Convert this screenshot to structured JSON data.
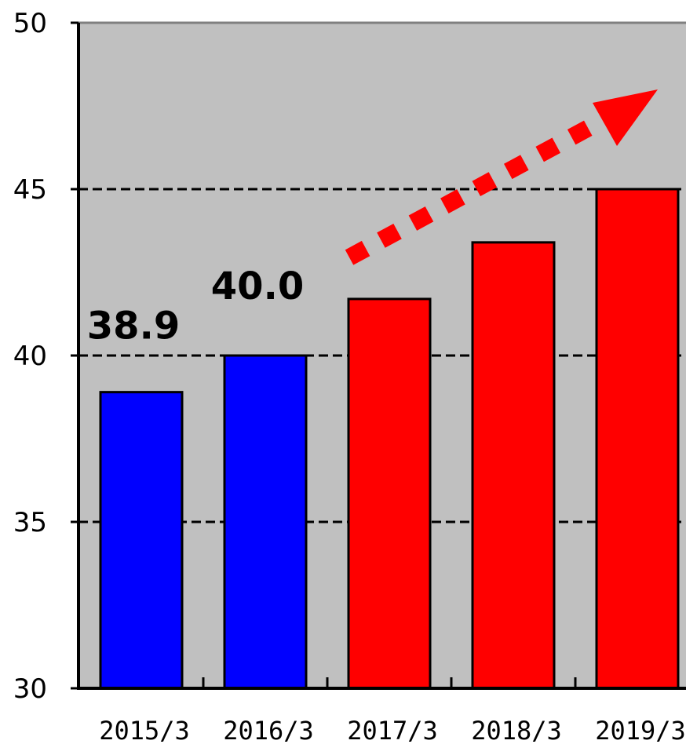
{
  "chart_data": {
    "type": "bar",
    "categories": [
      "2015/3",
      "2016/3",
      "2017/3",
      "2018/3",
      "2019/3"
    ],
    "values": [
      38.9,
      40.0,
      41.7,
      43.4,
      45.0
    ],
    "data_labels": [
      "38.9",
      "40.0",
      "",
      "",
      ""
    ],
    "bar_colors": [
      "#0000ff",
      "#0000ff",
      "#ff0000",
      "#ff0000",
      "#ff0000"
    ],
    "ylim": [
      30,
      50
    ],
    "yticks": [
      30,
      35,
      40,
      45,
      50
    ],
    "title": "",
    "xlabel": "",
    "ylabel": "",
    "grid": "dashed horizontal",
    "plot_background": "#c0c0c0",
    "trend_arrow": {
      "color": "#ff0000",
      "style": "dashed",
      "direction": "up-right"
    }
  }
}
